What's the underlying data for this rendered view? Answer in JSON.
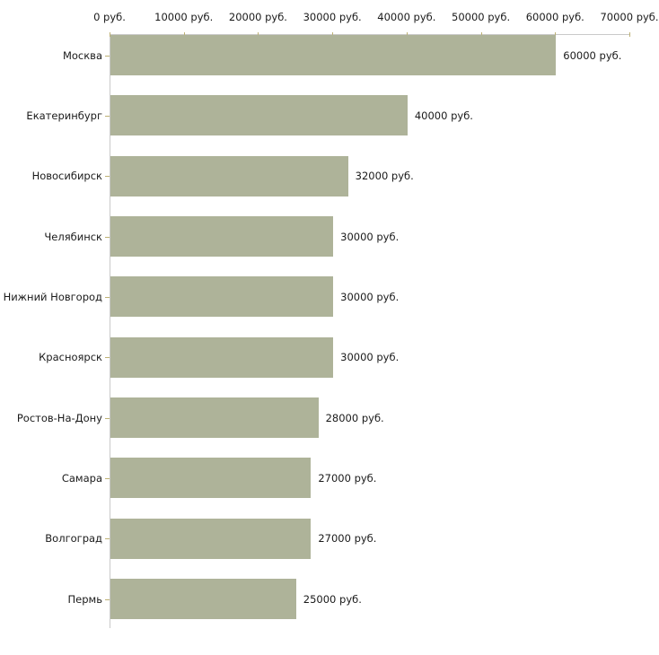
{
  "chart_data": {
    "type": "bar",
    "orientation": "horizontal",
    "title": "",
    "categories": [
      "Москва",
      "Екатеринбург",
      "Новосибирск",
      "Челябинск",
      "Нижний Новгород",
      "Красноярск",
      "Ростов-На-Дону",
      "Самара",
      "Волгоград",
      "Пермь"
    ],
    "values": [
      60000,
      40000,
      32000,
      30000,
      30000,
      30000,
      28000,
      27000,
      27000,
      25000
    ],
    "value_labels": [
      "60000 руб.",
      "40000 руб.",
      "32000 руб.",
      "30000 руб.",
      "30000 руб.",
      "30000 руб.",
      "28000 руб.",
      "27000 руб.",
      "27000 руб.",
      "25000 руб."
    ],
    "unit": "руб.",
    "x_axis": {
      "position": "top",
      "range": [
        0,
        70000
      ],
      "ticks": [
        0,
        10000,
        20000,
        30000,
        40000,
        50000,
        60000,
        70000
      ],
      "tick_labels": [
        "0 руб.",
        "10000 руб.",
        "20000 руб.",
        "30000 руб.",
        "40000 руб.",
        "50000 руб.",
        "60000 руб.",
        "70000 руб."
      ]
    },
    "grid": false,
    "legend": false,
    "colors": {
      "bar": "#aeb399",
      "axis_line": "#c9c9c9",
      "tick": "#bdb174",
      "text": "#1a1a1a",
      "background": "#ffffff"
    }
  }
}
